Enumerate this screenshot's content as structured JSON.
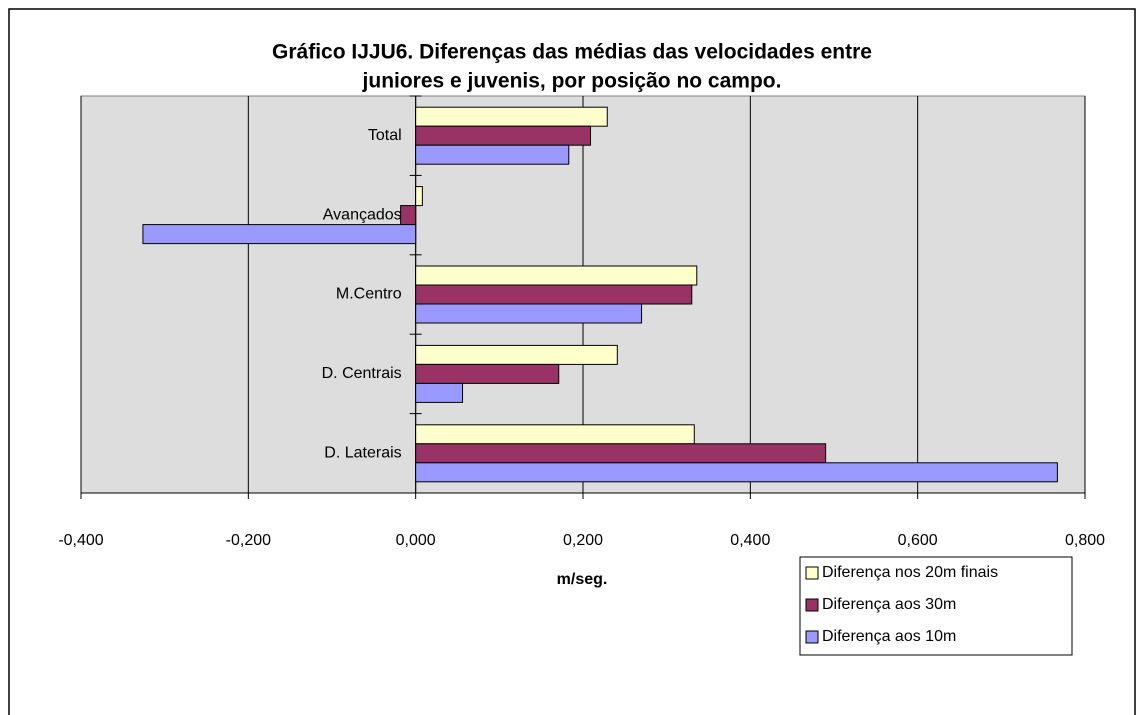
{
  "chart_data": {
    "type": "hbar",
    "title": [
      "Gráfico IJJU6. Diferenças das médias das velocidades entre",
      "juniores e juvenis, por posição no campo."
    ],
    "x_label": "m/seg.",
    "categories": [
      "Total",
      "Avançados",
      "M.Centro",
      "D. Centrais",
      "D. Laterais"
    ],
    "series": [
      {
        "name": "Diferença nos 20m finais",
        "color": "#ffffcc",
        "values": [
          0.229,
          0.008,
          0.336,
          0.241,
          0.333
        ]
      },
      {
        "name": "Diferença aos 30m",
        "color": "#993366",
        "values": [
          0.209,
          -0.018,
          0.33,
          0.171,
          0.49
        ]
      },
      {
        "name": "Diferença aos 10m",
        "color": "#9999ff",
        "values": [
          0.183,
          -0.326,
          0.27,
          0.056,
          0.767
        ]
      }
    ],
    "xlim": [
      -0.4,
      0.8
    ],
    "xticks": [
      {
        "value": -0.4,
        "label": "-0,400"
      },
      {
        "value": -0.2,
        "label": "-0,200"
      },
      {
        "value": 0,
        "label": "0,000"
      },
      {
        "value": 0.2,
        "label": "0,200"
      },
      {
        "value": 0.4,
        "label": "0,400"
      },
      {
        "value": 0.6,
        "label": "0,600"
      },
      {
        "value": 0.8,
        "label": "0,800"
      }
    ],
    "grid": true,
    "legend": "lower-right",
    "plot_background": "#dddddd"
  }
}
